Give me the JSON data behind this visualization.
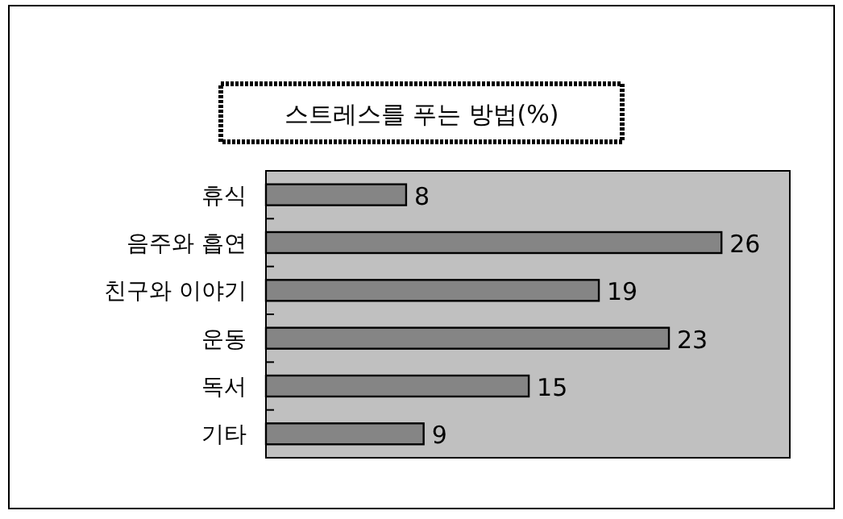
{
  "chart_data": {
    "type": "bar",
    "orientation": "horizontal",
    "title": "스트레스를 푸는 방법(%)",
    "categories": [
      "휴식",
      "음주와 흡연",
      "친구와 이야기",
      "운동",
      "독서",
      "기타"
    ],
    "values": [
      8,
      26,
      19,
      23,
      15,
      9
    ],
    "color": "#858585",
    "data_labels": true
  }
}
